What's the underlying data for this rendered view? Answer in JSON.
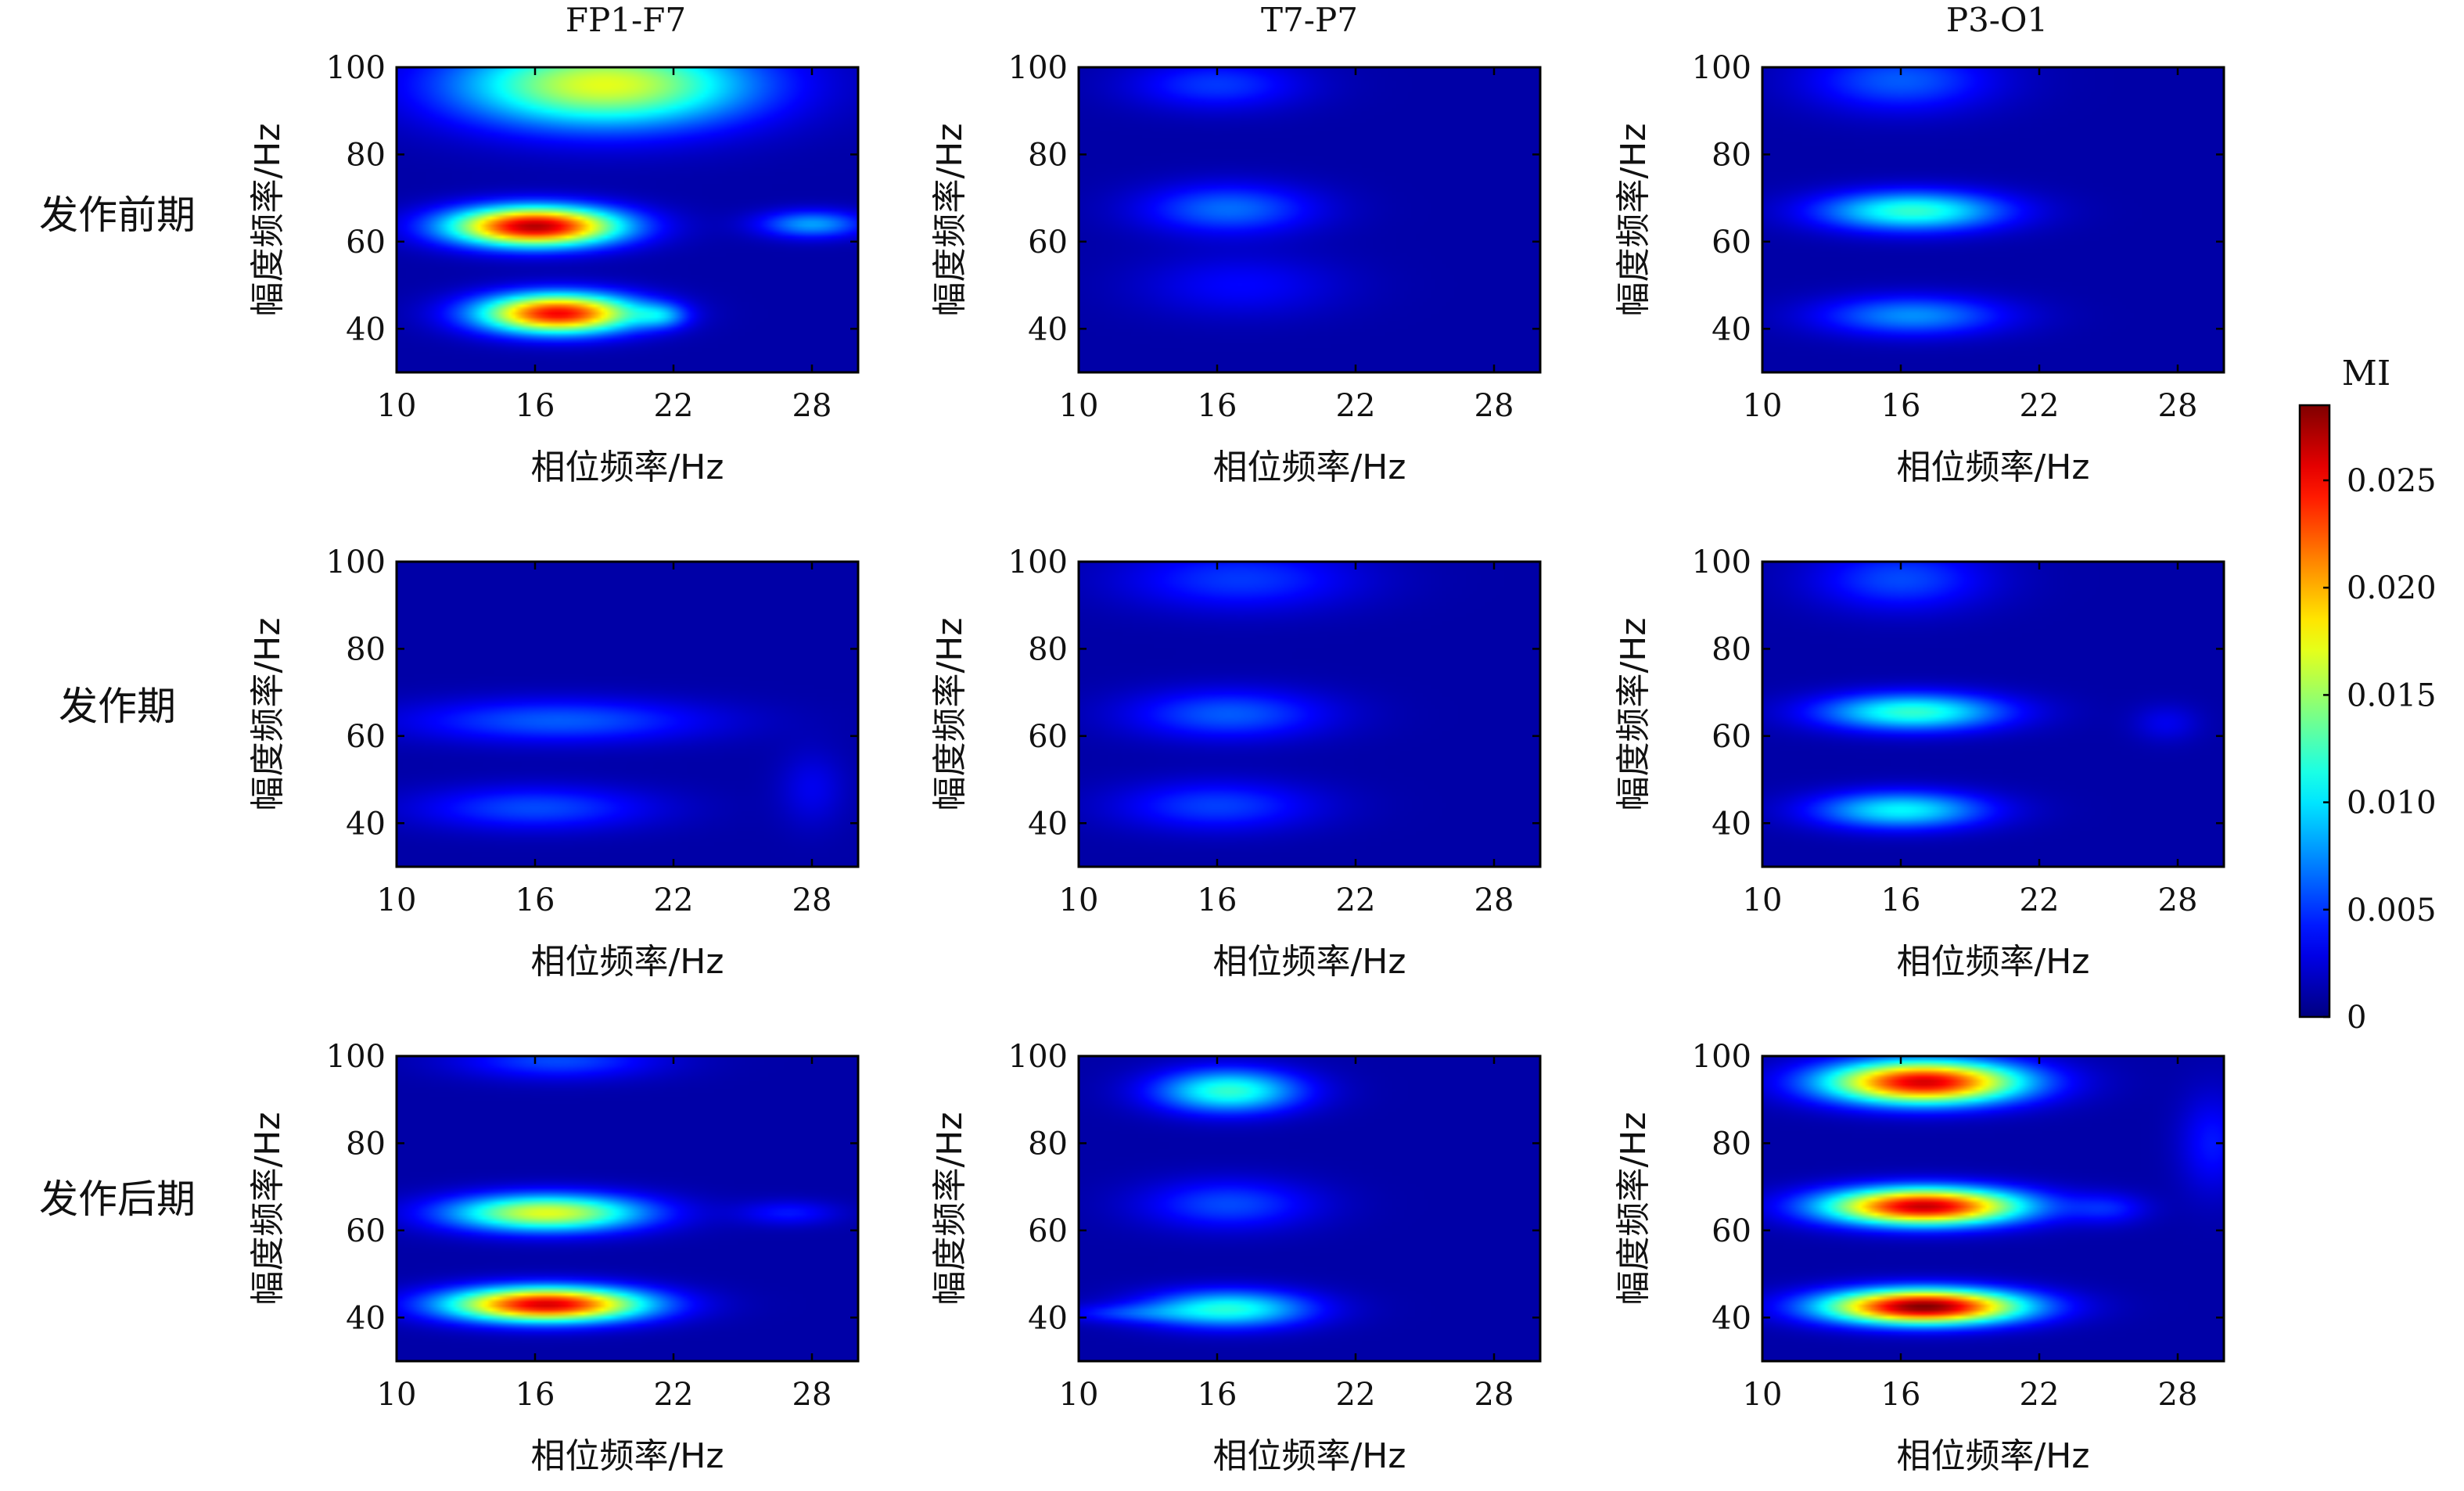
{
  "figure": {
    "columns": [
      "FP1-F7",
      "T7-P7",
      "P3-O1"
    ],
    "rows": [
      "发作前期",
      "发作期",
      "发作后期"
    ],
    "xlabel": "相位频率/Hz",
    "ylabel": "幅度频率/Hz",
    "colorbar_title": "MI"
  },
  "chart_data": {
    "type": "heatmap",
    "title": "",
    "xlabel": "相位频率/Hz",
    "ylabel": "幅度频率/Hz",
    "x_range": [
      10,
      30
    ],
    "y_range": [
      30,
      100
    ],
    "x_ticks": [
      10,
      16,
      22,
      28
    ],
    "y_ticks": [
      40,
      60,
      80,
      100
    ],
    "colorbar": {
      "label": "MI",
      "range": [
        0,
        0.0285
      ],
      "ticks": [
        0,
        0.005,
        0.01,
        0.015,
        0.02,
        0.025
      ],
      "tick_labels": [
        "0",
        "0.005",
        "0.010",
        "0.015",
        "0.020",
        "0.025"
      ],
      "colormap": "jet"
    },
    "panels": [
      {
        "row": "发作前期",
        "column": "FP1-F7",
        "blobs": [
          {
            "x": 16,
            "y": 63.5,
            "sx": 2.6,
            "sy": 3.2,
            "v": 0.026
          },
          {
            "x": 17,
            "y": 43.5,
            "sx": 2.4,
            "sy": 3.2,
            "v": 0.024
          },
          {
            "x": 19,
            "y": 96,
            "sx": 4.5,
            "sy": 7,
            "v": 0.016
          },
          {
            "x": 28,
            "y": 64,
            "sx": 1.6,
            "sy": 2.2,
            "v": 0.007
          },
          {
            "x": 21.5,
            "y": 43,
            "sx": 0.8,
            "sy": 2,
            "v": 0.005
          }
        ]
      },
      {
        "row": "发作前期",
        "column": "T7-P7",
        "blobs": [
          {
            "x": 16.5,
            "y": 67.5,
            "sx": 2.6,
            "sy": 4,
            "v": 0.0055
          },
          {
            "x": 16,
            "y": 96,
            "sx": 2.6,
            "sy": 4,
            "v": 0.004
          },
          {
            "x": 17,
            "y": 50,
            "sx": 3,
            "sy": 5,
            "v": 0.0025
          }
        ]
      },
      {
        "row": "发作前期",
        "column": "P3-O1",
        "blobs": [
          {
            "x": 16.5,
            "y": 67,
            "sx": 2.8,
            "sy": 3.2,
            "v": 0.011
          },
          {
            "x": 16.5,
            "y": 43,
            "sx": 2.8,
            "sy": 3.2,
            "v": 0.0065
          },
          {
            "x": 16,
            "y": 97,
            "sx": 2.8,
            "sy": 5,
            "v": 0.005
          }
        ]
      },
      {
        "row": "发作期",
        "column": "FP1-F7",
        "blobs": [
          {
            "x": 17,
            "y": 63.5,
            "sx": 4.5,
            "sy": 3.5,
            "v": 0.005
          },
          {
            "x": 16,
            "y": 43.5,
            "sx": 3.5,
            "sy": 3.5,
            "v": 0.0045
          },
          {
            "x": 28,
            "y": 48,
            "sx": 1,
            "sy": 6,
            "v": 0.002
          }
        ]
      },
      {
        "row": "发作期",
        "column": "T7-P7",
        "blobs": [
          {
            "x": 16.5,
            "y": 65,
            "sx": 3,
            "sy": 4,
            "v": 0.005
          },
          {
            "x": 16,
            "y": 44,
            "sx": 3,
            "sy": 4,
            "v": 0.0042
          },
          {
            "x": 17,
            "y": 96,
            "sx": 3.5,
            "sy": 5,
            "v": 0.004
          }
        ]
      },
      {
        "row": "发作期",
        "column": "P3-O1",
        "blobs": [
          {
            "x": 16.5,
            "y": 65.5,
            "sx": 2.8,
            "sy": 3,
            "v": 0.011
          },
          {
            "x": 16,
            "y": 43,
            "sx": 2.6,
            "sy": 3,
            "v": 0.0095
          },
          {
            "x": 16,
            "y": 96,
            "sx": 2.6,
            "sy": 5,
            "v": 0.0045
          },
          {
            "x": 27.5,
            "y": 63,
            "sx": 1,
            "sy": 3,
            "v": 0.002
          }
        ]
      },
      {
        "row": "发作后期",
        "column": "FP1-F7",
        "blobs": [
          {
            "x": 16.5,
            "y": 43,
            "sx": 3,
            "sy": 2.8,
            "v": 0.025
          },
          {
            "x": 16.5,
            "y": 64,
            "sx": 3,
            "sy": 3,
            "v": 0.016
          },
          {
            "x": 17,
            "y": 99,
            "sx": 3,
            "sy": 3,
            "v": 0.0045
          },
          {
            "x": 27,
            "y": 64,
            "sx": 1.5,
            "sy": 2,
            "v": 0.003
          }
        ]
      },
      {
        "row": "发作后期",
        "column": "T7-P7",
        "blobs": [
          {
            "x": 16.5,
            "y": 92,
            "sx": 2.2,
            "sy": 3.5,
            "v": 0.011
          },
          {
            "x": 16.5,
            "y": 42,
            "sx": 2.5,
            "sy": 3,
            "v": 0.0105
          },
          {
            "x": 16.5,
            "y": 66,
            "sx": 2.6,
            "sy": 4,
            "v": 0.0045
          },
          {
            "x": 12,
            "y": 41,
            "sx": 2,
            "sy": 1.5,
            "v": 0.003
          }
        ]
      },
      {
        "row": "发作后期",
        "column": "P3-O1",
        "blobs": [
          {
            "x": 17,
            "y": 42.5,
            "sx": 3,
            "sy": 2.8,
            "v": 0.0275
          },
          {
            "x": 17,
            "y": 65.5,
            "sx": 3,
            "sy": 3,
            "v": 0.0255
          },
          {
            "x": 17,
            "y": 94,
            "sx": 3,
            "sy": 3.5,
            "v": 0.025
          },
          {
            "x": 25,
            "y": 65,
            "sx": 1.2,
            "sy": 2.5,
            "v": 0.003
          },
          {
            "x": 29.5,
            "y": 80,
            "sx": 1,
            "sy": 8,
            "v": 0.003
          }
        ]
      }
    ]
  }
}
